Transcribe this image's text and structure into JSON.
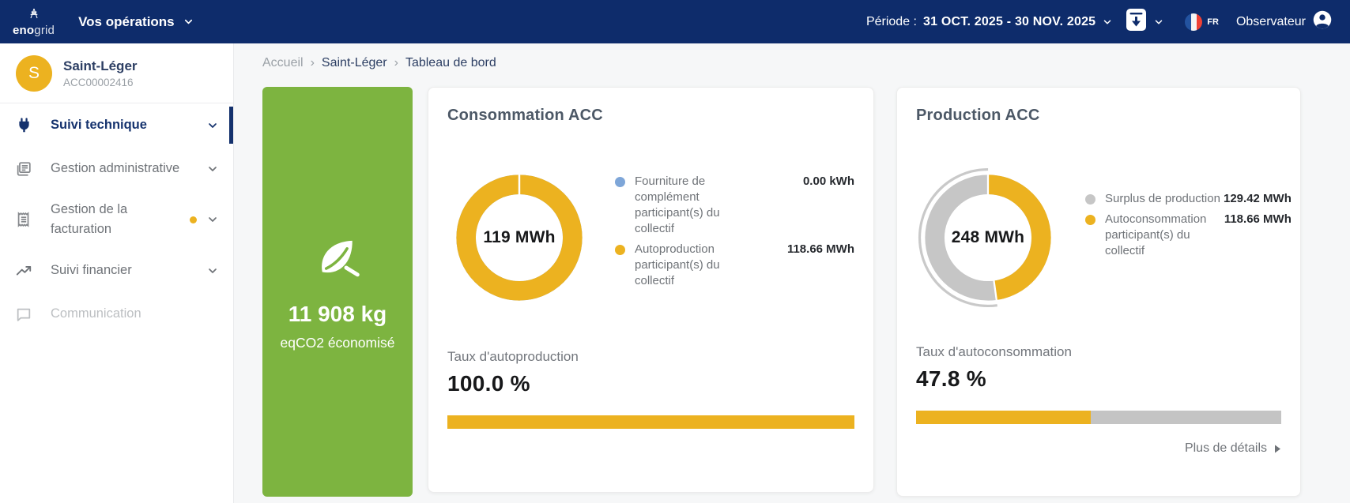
{
  "navbar": {
    "brand_bold": "eno",
    "brand_light": "grid",
    "operations_label": "Vos opérations",
    "period_label": "Période :",
    "period_value": "31 OCT. 2025 - 30 NOV. 2025",
    "language": "FR",
    "user_role": "Observateur"
  },
  "sidebar": {
    "operation": {
      "initial": "S",
      "name": "Saint-Léger",
      "code": "ACC00002416"
    },
    "items": [
      {
        "label": "Suivi technique",
        "icon": "plug-icon",
        "state": "active"
      },
      {
        "label": "Gestion administrative",
        "icon": "documents-icon",
        "state": "default"
      },
      {
        "label": "Gestion de la facturation",
        "icon": "receipt-icon",
        "state": "default",
        "badge": true
      },
      {
        "label": "Suivi financier",
        "icon": "trending-up-icon",
        "state": "default"
      },
      {
        "label": "Communication",
        "icon": "chat-icon",
        "state": "disabled"
      }
    ]
  },
  "breadcrumb": {
    "items": [
      "Accueil",
      "Saint-Léger",
      "Tableau de bord"
    ],
    "separator": "›"
  },
  "co2_card": {
    "value": "11 908 kg",
    "caption": "eqCO2 économisé",
    "icon": "leaf-icon"
  },
  "chart_data": [
    {
      "type": "donut",
      "title": "Consommation ACC",
      "center_label": "119 MWh",
      "slices": [
        {
          "label": "Fourniture de complément participant(s) du collectif",
          "value": 0.0,
          "display": "0.00 kWh",
          "color": "#7ea6d8"
        },
        {
          "label": "Autoproduction participant(s) du collectif",
          "value": 118.66,
          "display": "118.66 MWh",
          "color": "#ecb220"
        }
      ],
      "kpi": {
        "label": "Taux d'autoproduction",
        "display": "100.0 %",
        "percent": 100.0
      }
    },
    {
      "type": "donut",
      "title": "Production ACC",
      "center_label": "248 MWh",
      "slices": [
        {
          "label": "Surplus de production",
          "value": 129.42,
          "display": "129.42 MWh",
          "color": "#c6c6c6"
        },
        {
          "label": "Autoconsommation participant(s) du collectif",
          "value": 118.66,
          "display": "118.66 MWh",
          "color": "#ecb220"
        }
      ],
      "kpi": {
        "label": "Taux d'autoconsommation",
        "display": "47.8 %",
        "percent": 47.8
      },
      "footer": "Plus de détails"
    }
  ],
  "colors": {
    "navy": "#0e2c6b",
    "yellow": "#ecb220",
    "green": "#7db440",
    "blue": "#7ea6d8",
    "gray": "#c6c6c6"
  }
}
